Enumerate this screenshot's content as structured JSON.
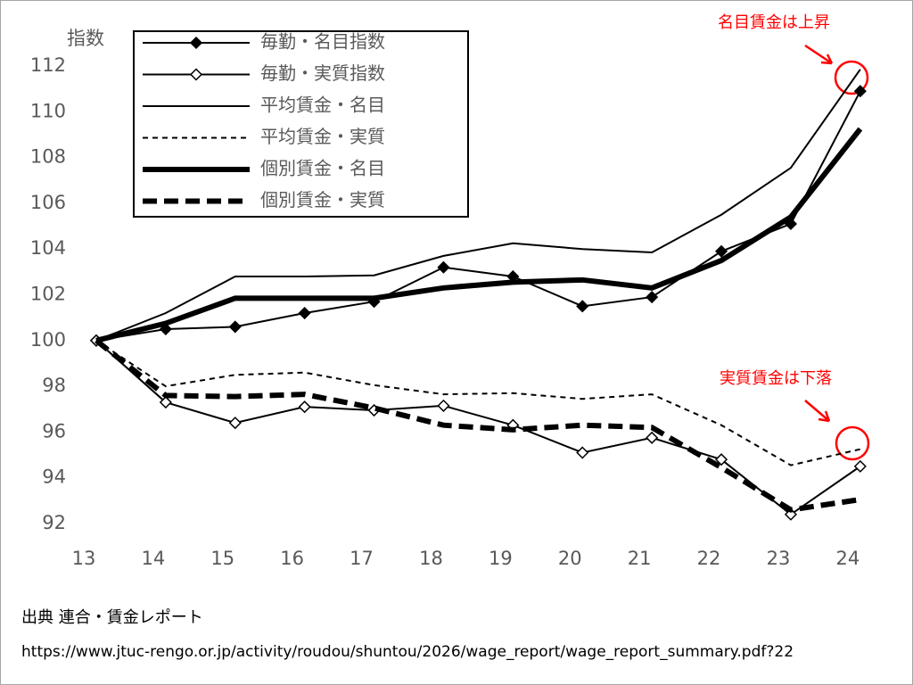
{
  "chart_data": {
    "type": "line",
    "y_label": "指数",
    "categories": [
      "13",
      "14",
      "15",
      "16",
      "17",
      "18",
      "19",
      "20",
      "21",
      "22",
      "23",
      "24"
    ],
    "ylim": [
      92,
      112
    ],
    "yticks": [
      92,
      94,
      96,
      98,
      100,
      102,
      104,
      106,
      108,
      110,
      112
    ],
    "grid": false,
    "legend": "top-left",
    "series": [
      {
        "name": "毎勤・名目指数",
        "color": "#000000",
        "marker": "diamond-filled",
        "dash": "solid",
        "weight": "thin",
        "values": [
          100,
          100.5,
          100.6,
          101.2,
          101.7,
          103.2,
          102.8,
          101.5,
          101.9,
          103.9,
          105.1,
          110.9
        ]
      },
      {
        "name": "毎勤・実質指数",
        "color": "#000000",
        "marker": "diamond-open",
        "dash": "solid",
        "weight": "thin",
        "values": [
          100,
          97.3,
          96.4,
          97.1,
          96.95,
          97.15,
          96.3,
          95.1,
          95.75,
          94.8,
          92.4,
          94.5
        ]
      },
      {
        "name": "平均賃金・名目",
        "color": "#000000",
        "marker": "none",
        "dash": "solid",
        "weight": "thin",
        "values": [
          100,
          101.2,
          102.8,
          102.8,
          102.85,
          103.7,
          104.25,
          104.0,
          103.85,
          105.5,
          107.55,
          111.85
        ]
      },
      {
        "name": "平均賃金・実質",
        "color": "#000000",
        "marker": "none",
        "dash": "dashed",
        "weight": "thin",
        "values": [
          100,
          98.0,
          98.5,
          98.6,
          98.05,
          97.65,
          97.7,
          97.45,
          97.65,
          96.3,
          94.55,
          95.25
        ]
      },
      {
        "name": "個別賃金・名目",
        "color": "#000000",
        "marker": "none",
        "dash": "solid",
        "weight": "thick",
        "values": [
          100,
          100.75,
          101.85,
          101.85,
          101.85,
          102.3,
          102.55,
          102.65,
          102.3,
          103.5,
          105.4,
          109.25
        ]
      },
      {
        "name": "個別賃金・実質",
        "color": "#000000",
        "marker": "none",
        "dash": "dashed",
        "weight": "thick",
        "values": [
          100,
          97.6,
          97.55,
          97.65,
          97.05,
          96.3,
          96.1,
          96.3,
          96.2,
          94.45,
          92.6,
          93.05
        ]
      }
    ],
    "annotations": [
      {
        "text": "名目賃金は上昇",
        "color": "#ff0000"
      },
      {
        "text": "実質賃金は下落",
        "color": "#ff0000"
      }
    ],
    "source": "出典 連合・賃金レポート",
    "source_url": "https://www.jtuc-rengo.or.jp/activity/roudou/shuntou/2026/wage_report/wage_report_summary.pdf?22"
  }
}
